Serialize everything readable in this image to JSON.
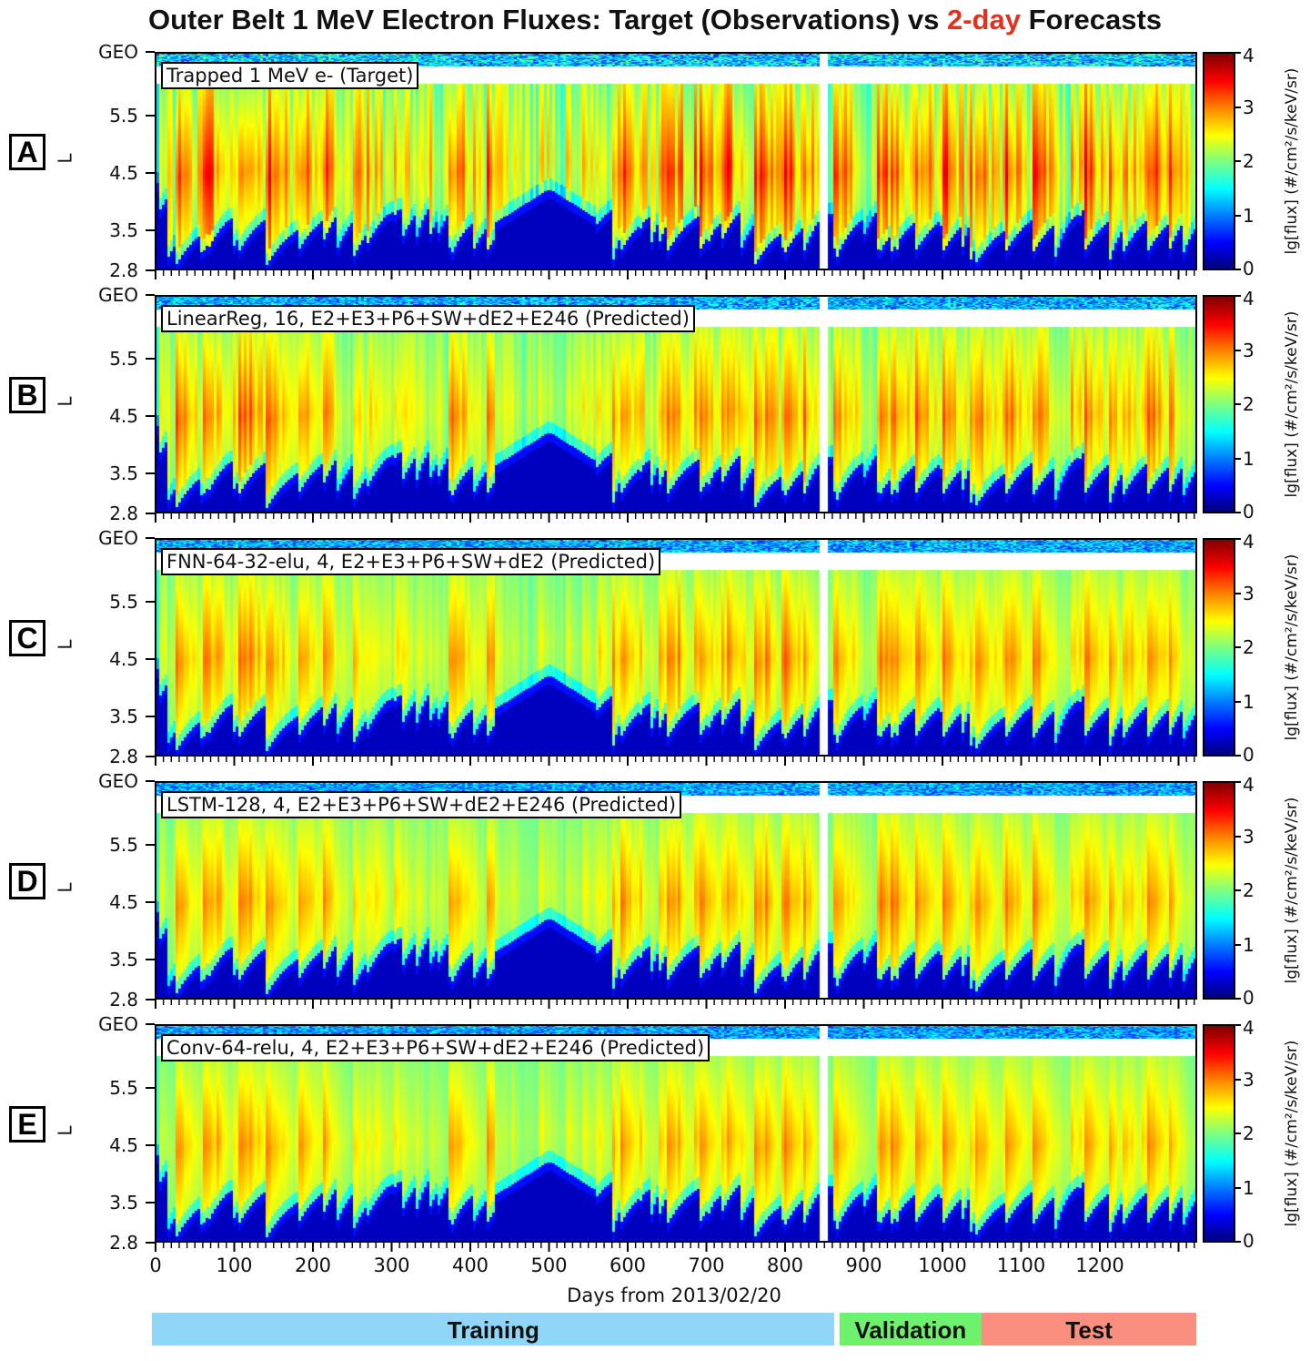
{
  "title": {
    "prefix": "Outer Belt 1 MeV Electron Fluxes: Target (Observations) vs ",
    "highlight": "2-day",
    "suffix": " Forecasts",
    "highlight_color": "#e0321e"
  },
  "chart_data": {
    "type": "heatmap",
    "title": "Outer Belt 1 MeV Electron Fluxes: Target (Observations) vs 2-day Forecasts",
    "xlabel": "Days from 2013/02/20",
    "ylabel": "L",
    "xlim": [
      0,
      1325
    ],
    "x_ticks": [
      "0",
      "100",
      "200",
      "300",
      "400",
      "500",
      "600",
      "700",
      "800",
      "900",
      "1000",
      "1100",
      "1200"
    ],
    "y_ticks": [
      "GEO",
      "5.5",
      "4.5",
      "3.5",
      "2.8"
    ],
    "y_tick_values": [
      6.6,
      5.5,
      4.5,
      3.5,
      2.8
    ],
    "colorbar": {
      "label": "lg[flux] (#/cm²/s/keV/sr)",
      "ticks": [
        "0",
        "1",
        "2",
        "3",
        "4"
      ],
      "range": [
        0,
        4
      ],
      "colormap": "jet"
    },
    "data_gap_days": [
      843,
      853
    ],
    "panels": [
      {
        "letter": "A",
        "label": "Trapped 1 MeV e- (Target)"
      },
      {
        "letter": "B",
        "label": "LinearReg, 16, E2+E3+P6+SW+dE2+E246 (Predicted)"
      },
      {
        "letter": "C",
        "label": "FNN-64-32-elu, 4, E2+E3+P6+SW+dE2 (Predicted)"
      },
      {
        "letter": "D",
        "label": "LSTM-128, 4, E2+E3+P6+SW+dE2+E246 (Predicted)"
      },
      {
        "letter": "E",
        "label": "Conv-64-relu, 4, E2+E3+P6+SW+dE2+E246 (Predicted)"
      }
    ],
    "phases": [
      {
        "name": "Training",
        "start_day": -3,
        "end_day": 864,
        "color": "#8fd6f8"
      },
      {
        "name": "Validation",
        "start_day": 870,
        "end_day": 1051,
        "color": "#6ef26e"
      },
      {
        "name": "Test",
        "start_day": 1051,
        "end_day": 1324,
        "color": "#fa8f80"
      }
    ]
  }
}
